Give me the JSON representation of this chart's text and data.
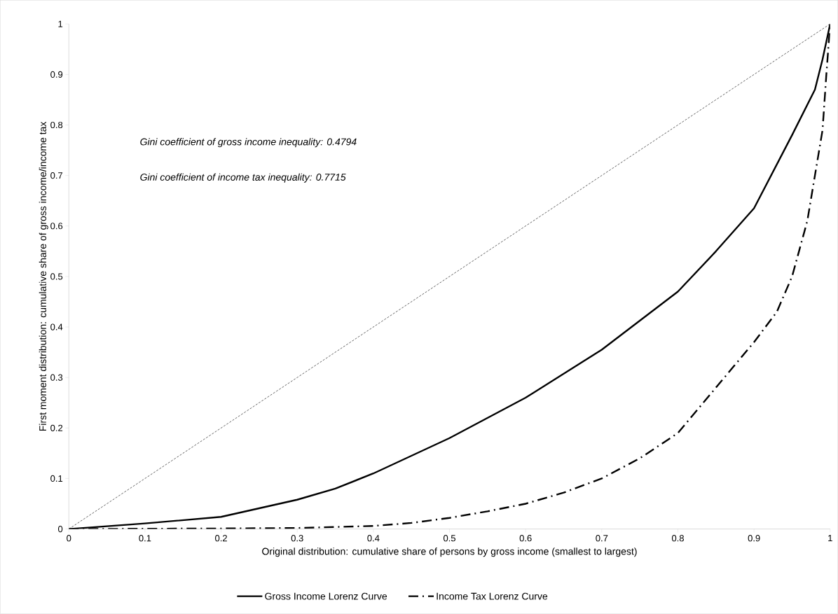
{
  "chart_data": {
    "type": "line",
    "xlabel": "Original distribution: cumulative share of persons by gross income (smallest to largest)",
    "ylabel": "First moment distribution: cumulative share of gross income/income tax",
    "xlim": [
      0,
      1
    ],
    "ylim": [
      0,
      1
    ],
    "xticks": [
      0,
      0.1,
      0.2,
      0.3,
      0.4,
      0.5,
      0.6,
      0.7,
      0.8,
      0.9,
      1
    ],
    "yticks": [
      0,
      0.1,
      0.2,
      0.3,
      0.4,
      0.5,
      0.6,
      0.7,
      0.8,
      0.9,
      1
    ],
    "legend": "bottom",
    "grid": false,
    "marker": "none",
    "annotations": [
      "*Gini coefficient of gross income inequality: 0.4794*",
      "*Gini coefficient of income tax inequality: 0.7715*"
    ],
    "series": [
      {
        "color": "#000000",
        "line_style": "dashed",
        "x": [
          0,
          1
        ],
        "values": [
          0,
          1
        ]
      },
      {
        "name": "Gross Income Lorenz Curve",
        "color": "#000000",
        "line_style": "solid",
        "x": [
          0,
          0.1,
          0.2,
          0.3,
          0.35,
          0.4,
          0.5,
          0.6,
          0.7,
          0.8,
          0.85,
          0.9,
          0.95,
          0.98,
          0.99,
          1
        ],
        "values": [
          0,
          0.011,
          0.024,
          0.058,
          0.08,
          0.11,
          0.18,
          0.26,
          0.355,
          0.47,
          0.55,
          0.635,
          0.78,
          0.87,
          0.93,
          1
        ]
      },
      {
        "name": "Income Tax Lorenz Curve",
        "color": "#000000",
        "line_style": "dashdot",
        "x": [
          0,
          0.2,
          0.3,
          0.4,
          0.45,
          0.5,
          0.55,
          0.6,
          0.65,
          0.7,
          0.75,
          0.8,
          0.85,
          0.9,
          0.93,
          0.95,
          0.97,
          0.99,
          0.995,
          1
        ],
        "values": [
          0,
          0.001,
          0.002,
          0.006,
          0.012,
          0.022,
          0.035,
          0.05,
          0.072,
          0.1,
          0.14,
          0.19,
          0.28,
          0.37,
          0.43,
          0.5,
          0.61,
          0.79,
          0.9,
          1
        ]
      }
    ]
  }
}
